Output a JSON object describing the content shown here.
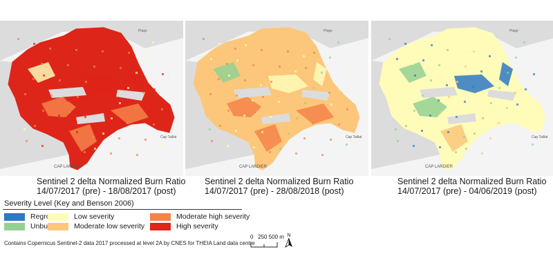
{
  "colors": {
    "regrowth": "#2f78c4",
    "unburned": "#93d193",
    "low": "#fefcb8",
    "moderate_low": "#fcc77b",
    "moderate_high": "#f5834a",
    "high": "#de2519",
    "basemap": "#dcdcdc",
    "sea": "#f4f4f4"
  },
  "map_labels": {
    "cap_lardier": "CAP LARDIER",
    "cap_taillat": "Cap Taillat",
    "plage": "Plage"
  },
  "panels": [
    {
      "title": "Sentinel 2 delta Normalized Burn Ratio",
      "dates": "14/07/2017 (pre) - 18/08/2017 (post)",
      "dominant": "high"
    },
    {
      "title": "Sentinel 2 delta Normalized Burn Ratio",
      "dates": "14/07/2017 (pre) - 28/08/2018 (post)",
      "dominant": "moderate_low"
    },
    {
      "title": "Sentinel 2 delta Normalized Burn Ratio",
      "dates": "14/07/2017 (pre) - 04/06/2019 (post)",
      "dominant": "low"
    }
  ],
  "legend": {
    "title": "Severity Level (Key and Benson 2006)",
    "items": [
      {
        "key": "regrowth",
        "label": "Regrowth"
      },
      {
        "key": "unburned",
        "label": "Unburned"
      },
      {
        "key": "low",
        "label": "Low severity"
      },
      {
        "key": "moderate_low",
        "label": "Moderate low severity"
      },
      {
        "key": "moderate_high",
        "label": "Moderate high severity"
      },
      {
        "key": "high",
        "label": "High severity"
      }
    ]
  },
  "credit": "Contains Copernicus Sentinel-2 data 2017 processed at level 2A by CNES for THEIA Land data centre",
  "scale": {
    "labels": [
      "0",
      "250",
      "500 m"
    ]
  },
  "north": "N"
}
